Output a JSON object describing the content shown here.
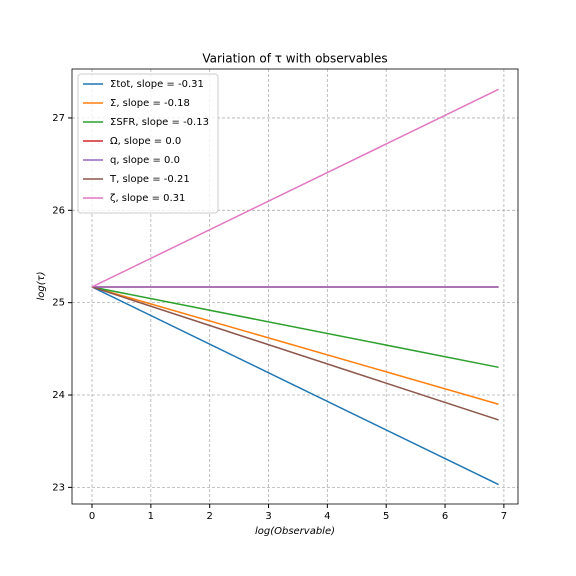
{
  "chart_data": {
    "type": "line",
    "title": "Variation of τ with observables",
    "xlabel": "log(Observable)",
    "ylabel": "log(τ)",
    "x": [
      0,
      6.91
    ],
    "series": [
      {
        "name": "Σtot,  slope = -0.31",
        "color": "#1f77b4",
        "values": [
          25.17,
          23.03
        ]
      },
      {
        "name": "Σ,  slope = -0.18",
        "color": "#ff7f0e",
        "values": [
          25.17,
          23.9
        ]
      },
      {
        "name": "ΣSFR,  slope = -0.13",
        "color": "#2ca02c",
        "values": [
          25.17,
          24.3
        ]
      },
      {
        "name": "Ω,  slope = 0.0",
        "color": "#d62728",
        "values": [
          25.17,
          25.17
        ]
      },
      {
        "name": "q,  slope = 0.0",
        "color": "#9467bd",
        "values": [
          25.17,
          25.17
        ]
      },
      {
        "name": "T,  slope = -0.21",
        "color": "#8c564b",
        "values": [
          25.17,
          23.73
        ]
      },
      {
        "name": "ζ,  slope = 0.31",
        "color": "#e377c2",
        "values": [
          25.17,
          27.31
        ]
      }
    ],
    "xlim": [
      -0.34,
      7.24
    ],
    "xticks": [
      0,
      1,
      2,
      3,
      4,
      5,
      6,
      7
    ],
    "ylim": [
      22.82,
      27.53
    ],
    "yticks": [
      23,
      24,
      25,
      26,
      27
    ],
    "grid": true,
    "legend": "upper left"
  }
}
